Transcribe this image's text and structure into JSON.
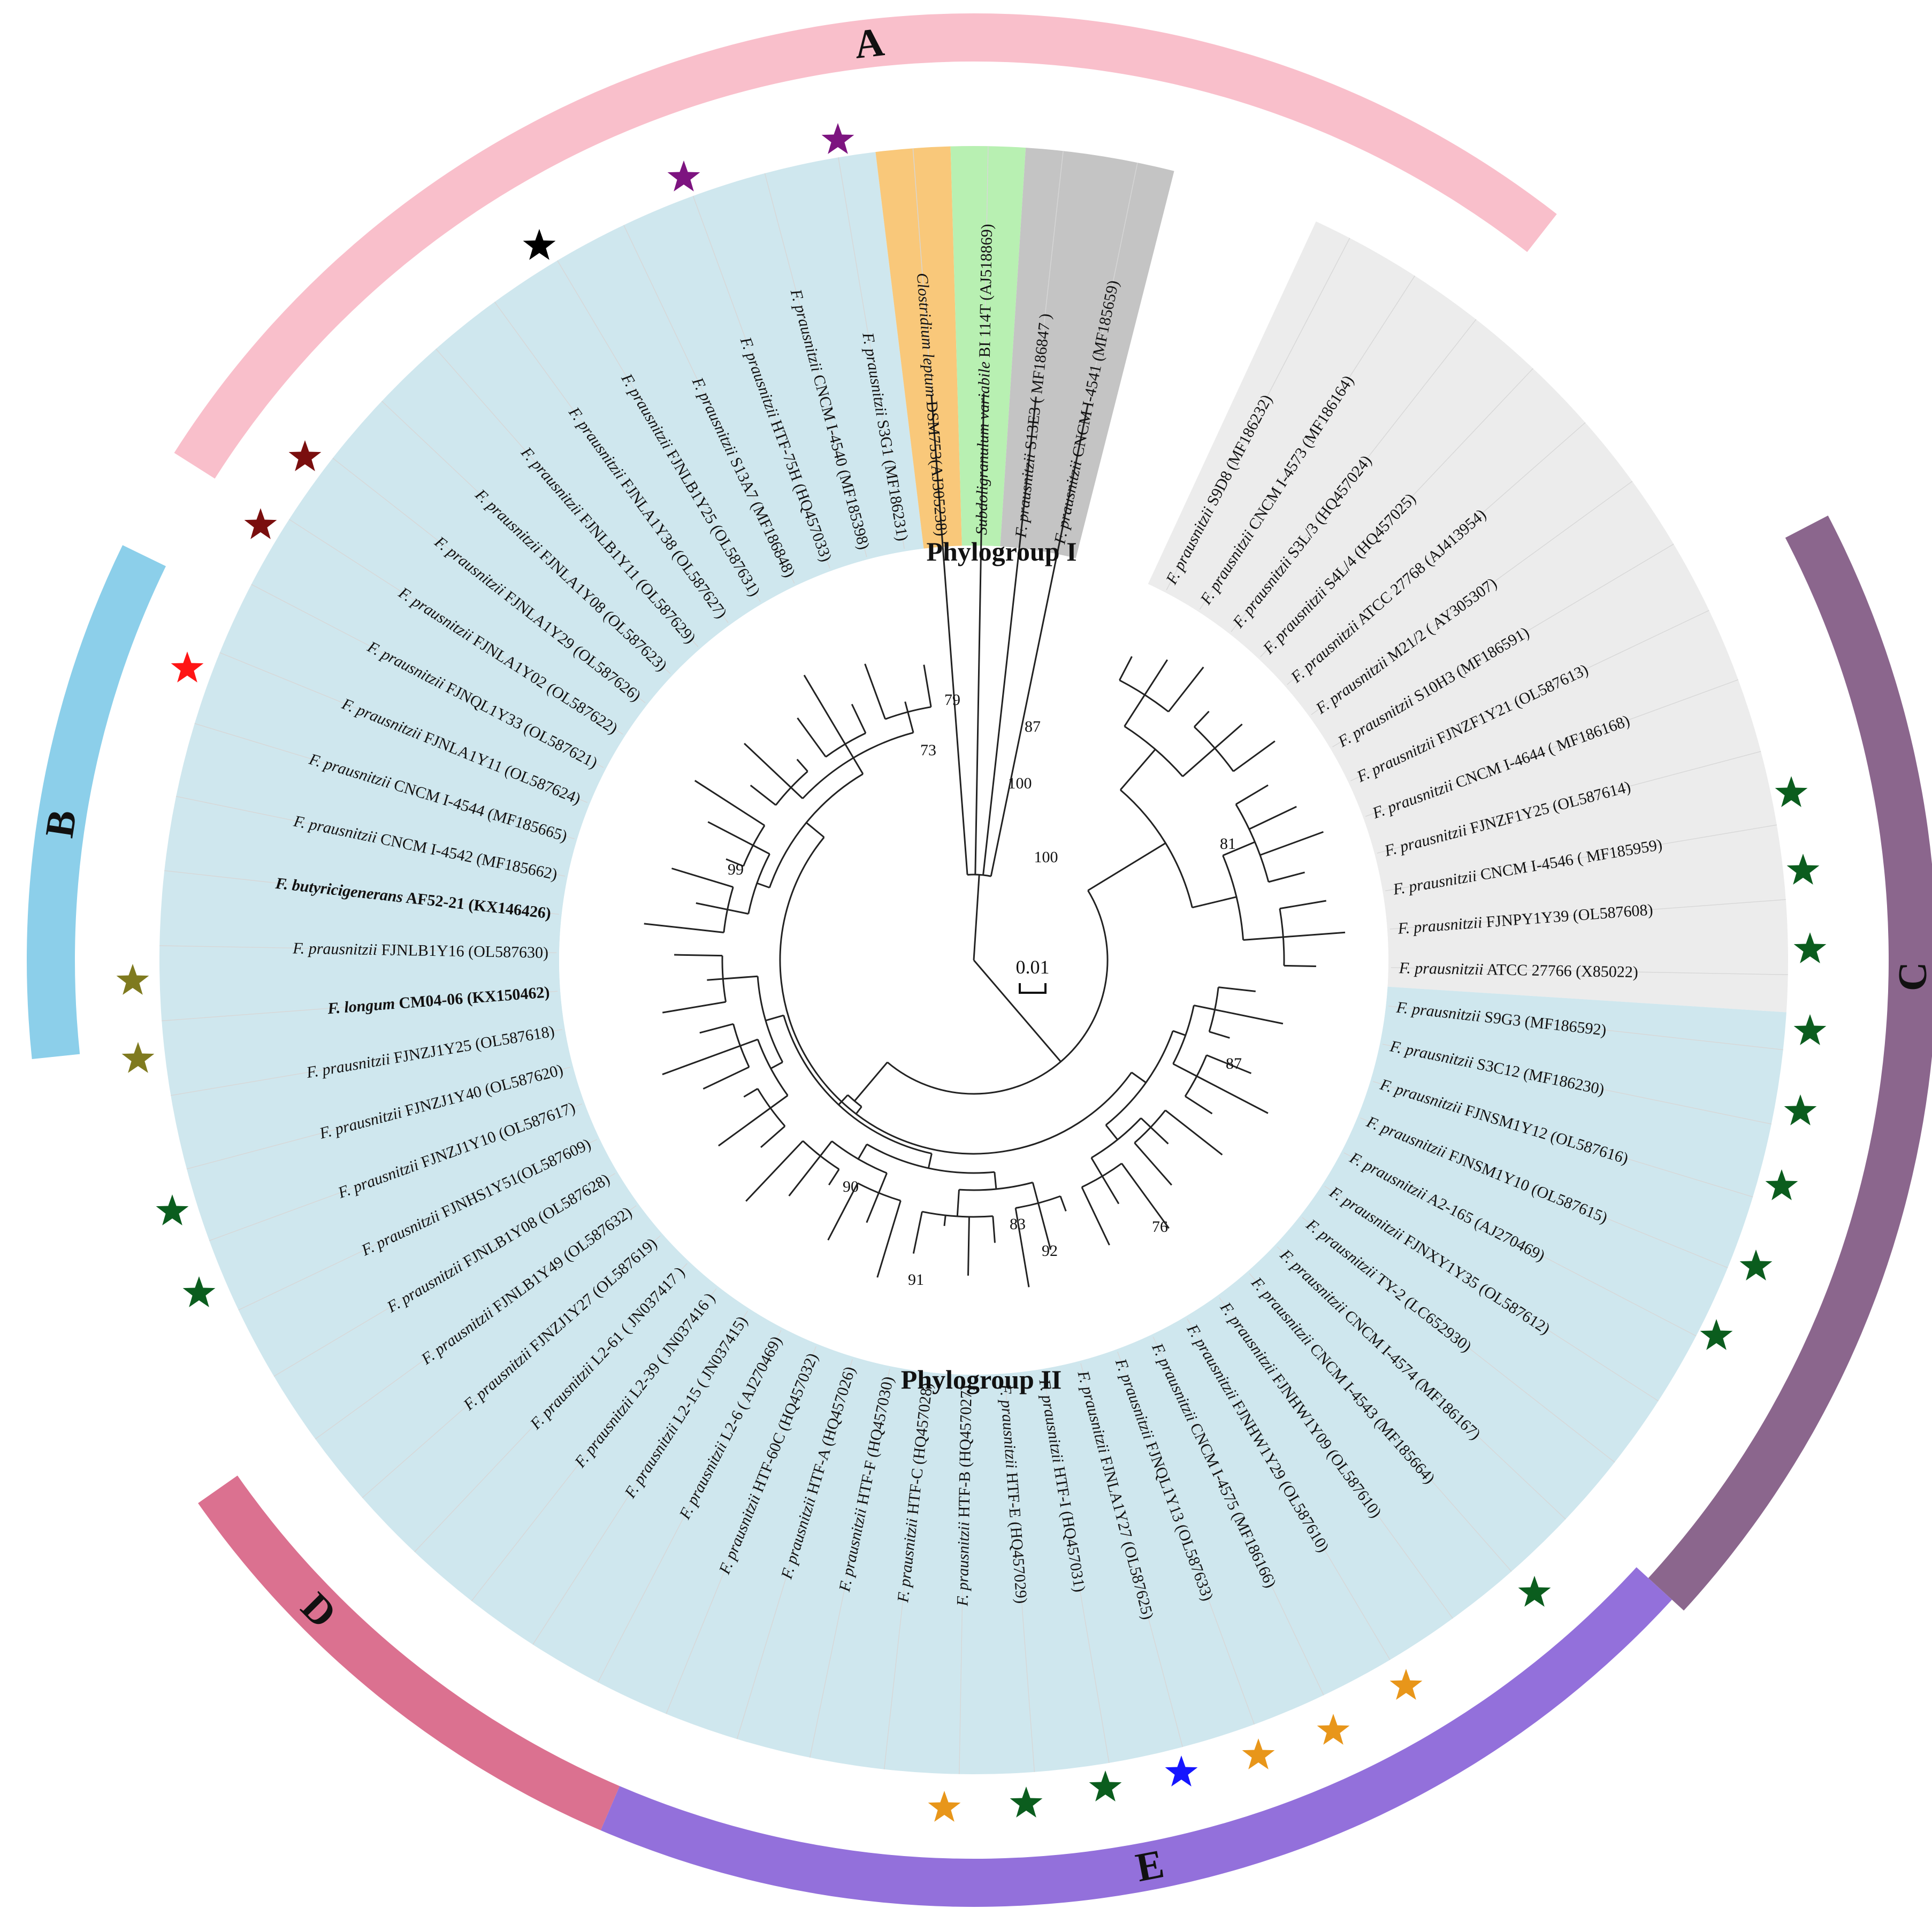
{
  "colors": {
    "phylogroup_I_bg": "#ececec",
    "phylogroup_II_bg": "#cfe7ee",
    "dark_grey_bg": "#c4c4c4",
    "green_bg": "#b8f0b2",
    "orange_bg": "#f9c87a",
    "clade_A": "#f9bfcb",
    "clade_B": "#8ccfea",
    "clade_C": "#8b668d",
    "clade_D": "#db7190",
    "clade_E": "#9370db"
  },
  "group_labels": {
    "phylogroup_I": "Phylogroup I",
    "phylogroup_II": "Phylogroup II"
  },
  "scale_bar": {
    "label": "0.01"
  },
  "clades": [
    {
      "letter": "A",
      "color": "#f9bfcb"
    },
    {
      "letter": "B",
      "color": "#8ccfea"
    },
    {
      "letter": "C",
      "color": "#8b668d"
    },
    {
      "letter": "D",
      "color": "#db7190"
    },
    {
      "letter": "E",
      "color": "#9370db"
    }
  ],
  "taxa": [
    {
      "genus": "F. prausnitzii",
      "strain": "S9D8 (MF186232)"
    },
    {
      "genus": "F. prausnitzii",
      "strain": "CNCM I-4573 (MF186164)"
    },
    {
      "genus": "F. prausnitzii",
      "strain": "S3L/3 (HQ457024)"
    },
    {
      "genus": "F. prausnitzii",
      "strain": "S4L/4 (HQ457025)"
    },
    {
      "genus": "F. prausnitzii",
      "strain": "ATCC 27768 (AJ413954)"
    },
    {
      "genus": "F. prausnitzii",
      "strain": "M21/2 ( AY305307)"
    },
    {
      "genus": "F. prausnitzii",
      "strain": "S10H3 (MF186591)"
    },
    {
      "genus": "F. prausnitzii",
      "strain": "FJNZF1Y21 (OL587613)"
    },
    {
      "genus": "F. prausnitzii",
      "strain": "CNCM I-4644 ( MF186168)"
    },
    {
      "genus": "F. prausnitzii",
      "strain": "FJNZF1Y25 (OL587614)"
    },
    {
      "genus": "F. prausnitzii",
      "strain": "CNCM I-4546 ( MF185959)"
    },
    {
      "genus": "F. prausnitzii",
      "strain": "FJNPY1Y39 (OL587608)"
    },
    {
      "genus": "F. prausnitzii",
      "strain": "ATCC 27766 (X85022)"
    },
    {
      "genus": "F. prausnitzii",
      "strain": "S9G3 (MF186592)"
    },
    {
      "genus": "F. prausnitzii",
      "strain": "S3C12 (MF186230)"
    },
    {
      "genus": "F. prausnitzii",
      "strain": "FJNSM1Y12 (OL587616)"
    },
    {
      "genus": "F. prausnitzii",
      "strain": "FJNSM1Y10  (OL587615)"
    },
    {
      "genus": "F. prausnitzii",
      "strain": "A2-165 (AJ270469)"
    },
    {
      "genus": "F. prausnitzii",
      "strain": "FJNXY1Y35 (OL587612)"
    },
    {
      "genus": "F. prausnitzii",
      "strain": "TY-2 (LC652930)"
    },
    {
      "genus": "F. prausnitzii",
      "strain": "CNCM I-4574 (MF186167)"
    },
    {
      "genus": "F. prausnitzii",
      "strain": "CNCM I-4543 (MF185664)"
    },
    {
      "genus": "F. prausnitzii",
      "strain": "FJNHW1Y09 (OL587610)"
    },
    {
      "genus": "F. prausnitzii",
      "strain": "FJNHW1Y29 (OL587610)"
    },
    {
      "genus": "F. prausnitzii",
      "strain": "CNCM I-4575 (MF186166)"
    },
    {
      "genus": "F. prausnitzii",
      "strain": "FJNQL1Y13 (OL587633)"
    },
    {
      "genus": "F. prausnitzii",
      "strain": "FJNLA1Y27 (OL587625)"
    },
    {
      "genus": "F. prausnitzii",
      "strain": "HTF-I (HQ457031)"
    },
    {
      "genus": "F. prausnitzii",
      "strain": "HTF-E (HQ457029)"
    },
    {
      "genus": "F. prausnitzii",
      "strain": "HTF-B (HQ457027)"
    },
    {
      "genus": "F. prausnitzii",
      "strain": "HTF-C (HQ457028)"
    },
    {
      "genus": "F. prausnitzii",
      "strain": "HTF-F (HQ457030)"
    },
    {
      "genus": "F. prausnitzii",
      "strain": "HTF-A (HQ457026)"
    },
    {
      "genus": "F. prausnitzii",
      "strain": "HTF-60C (HQ457032)"
    },
    {
      "genus": "F. prausnitzii",
      "strain": "L2-6 ( AJ270469)"
    },
    {
      "genus": "F. prausnitzii",
      "strain": "L2-15 ( JN037415)"
    },
    {
      "genus": "F. prausnitzii",
      "strain": "L2-39 ( JN037416 )"
    },
    {
      "genus": "F. prausnitzii",
      "strain": "L2-61 ( JN037417 )"
    },
    {
      "genus": "F. prausnitzii",
      "strain": "FJNZJ1Y27 (OL587619)"
    },
    {
      "genus": "F. prausnitzii",
      "strain": "FJNLB1Y49 (OL587632)"
    },
    {
      "genus": "F. prausnitzii",
      "strain": "FJNLB1Y08 (OL587628)"
    },
    {
      "genus": "F. prausnitzii",
      "strain": "FJNHS1Y51(OL587609)"
    },
    {
      "genus": "F. prausnitzii",
      "strain": "FJNZJ1Y10 (OL587617)"
    },
    {
      "genus": "F. prausnitzii",
      "strain": "FJNZJ1Y40 (OL587620)"
    },
    {
      "genus": "F. prausnitzii",
      "strain": "FJNZJ1Y25 (OL587618)"
    },
    {
      "genus": "F. longum",
      "strain": "CM04-06 (KX150462)",
      "bold": true
    },
    {
      "genus": "F. prausnitzii",
      "strain": "FJNLB1Y16 (OL587630)"
    },
    {
      "genus": "F. butyricigenerans",
      "strain": "AF52-21 (KX146426)",
      "bold": true
    },
    {
      "genus": "F. prausnitzii",
      "strain": "CNCM I-4542 (MF185662)"
    },
    {
      "genus": "F. prausnitzii",
      "strain": "CNCM I-4544 (MF185665)"
    },
    {
      "genus": "F. prausnitzii",
      "strain": "FJNLA1Y11 (OL587624)"
    },
    {
      "genus": "F. prausnitzii",
      "strain": "FJNQL1Y33 (OL587621)"
    },
    {
      "genus": "F. prausnitzii",
      "strain": "FJNLA1Y02 (OL587622)"
    },
    {
      "genus": "F. prausnitzii",
      "strain": "FJNLA1Y29 (OL587626)"
    },
    {
      "genus": "F. prausnitzii",
      "strain": "FJNLA1Y08 (OL587623)"
    },
    {
      "genus": "F. prausnitzii",
      "strain": "FJNLB1Y11 (OL587629)"
    },
    {
      "genus": "F. prausnitzii",
      "strain": "FJNLA1Y38 (OL587627)"
    },
    {
      "genus": "F. prausnitzii",
      "strain": "FJNLB1Y25 (OL587631)"
    },
    {
      "genus": "F. prausnitzii",
      "strain": "S13A7 (MF186848)"
    },
    {
      "genus": "F. prausnitzii",
      "strain": "HTF-75H (HQ457033)"
    },
    {
      "genus": "F. prausnitzii",
      "strain": "CNCM I-4540 (MF185398)"
    },
    {
      "genus": "F. prausnitzii",
      "strain": "S3G1 (MF186231)"
    },
    {
      "genus": "Clostridium leptum",
      "strain": "DSM753(AJ305238)"
    },
    {
      "genus": "Subdoligranulum variabile",
      "strain": "BI 114T (AJ518869)"
    },
    {
      "genus": "F. prausnitzii",
      "strain": "S13E3 ( MF186847 )"
    },
    {
      "genus": "F. prausnitzii",
      "strain": "CNCM I-4541 (MF185659)"
    }
  ],
  "bootstrap_values": [
    "79",
    "87",
    "73",
    "100",
    "100",
    "99",
    "81",
    "87",
    "90",
    "83",
    "92",
    "76",
    "91"
  ],
  "stars": [
    {
      "color": "#000000"
    },
    {
      "color": "#7d1480"
    },
    {
      "color": "#7d1480"
    },
    {
      "color": "#7a0e0e"
    },
    {
      "color": "#7a0e0e"
    },
    {
      "color": "#ff1515"
    },
    {
      "color": "#7f7a1f"
    },
    {
      "color": "#7f7a1f"
    },
    {
      "color": "#0b5d1e"
    },
    {
      "color": "#0b5d1e"
    },
    {
      "color": "#e8961a"
    },
    {
      "color": "#0b5d1e"
    },
    {
      "color": "#0b5d1e"
    },
    {
      "color": "#1515ff"
    },
    {
      "color": "#e8961a"
    },
    {
      "color": "#e8961a"
    },
    {
      "color": "#e8961a"
    },
    {
      "color": "#0b5d1e"
    },
    {
      "color": "#0b5d1e"
    },
    {
      "color": "#0b5d1e"
    },
    {
      "color": "#0b5d1e"
    },
    {
      "color": "#0b5d1e"
    },
    {
      "color": "#0b5d1e"
    },
    {
      "color": "#0b5d1e"
    },
    {
      "color": "#0b5d1e"
    },
    {
      "color": "#0b5d1e"
    }
  ]
}
